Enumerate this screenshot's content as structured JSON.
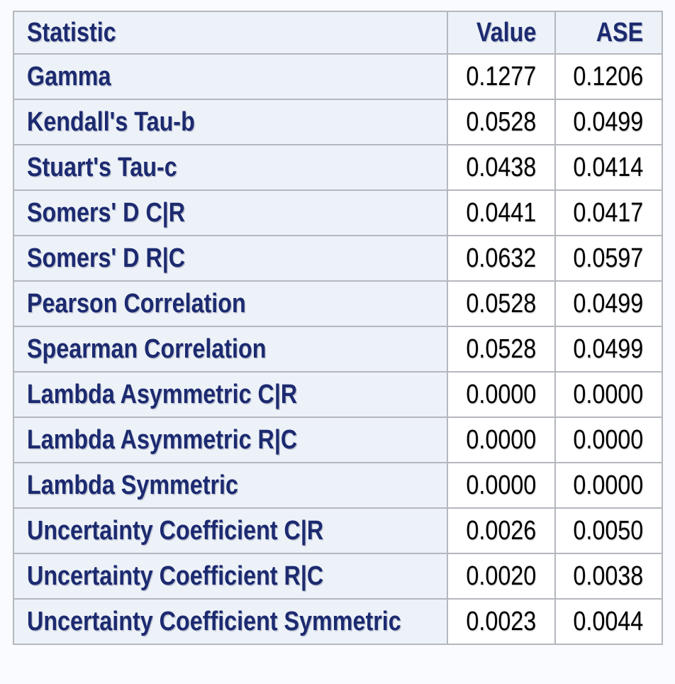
{
  "colors": {
    "page_bg": "#fafbfe",
    "header_cell_bg": "#edf2f9",
    "data_cell_bg": "#ffffff",
    "border": "#b4b7bd",
    "label_text": "#1c2a70",
    "value_text": "#000000"
  },
  "chart_data": {
    "type": "table",
    "columns": [
      "Statistic",
      "Value",
      "ASE"
    ],
    "rows": [
      {
        "statistic": "Gamma",
        "value": "0.1277",
        "ase": "0.1206"
      },
      {
        "statistic": "Kendall's Tau-b",
        "value": "0.0528",
        "ase": "0.0499"
      },
      {
        "statistic": "Stuart's Tau-c",
        "value": "0.0438",
        "ase": "0.0414"
      },
      {
        "statistic": "Somers' D C|R",
        "value": "0.0441",
        "ase": "0.0417"
      },
      {
        "statistic": "Somers' D R|C",
        "value": "0.0632",
        "ase": "0.0597"
      },
      {
        "statistic": "Pearson Correlation",
        "value": "0.0528",
        "ase": "0.0499"
      },
      {
        "statistic": "Spearman Correlation",
        "value": "0.0528",
        "ase": "0.0499"
      },
      {
        "statistic": "Lambda Asymmetric C|R",
        "value": "0.0000",
        "ase": "0.0000"
      },
      {
        "statistic": "Lambda Asymmetric R|C",
        "value": "0.0000",
        "ase": "0.0000"
      },
      {
        "statistic": "Lambda Symmetric",
        "value": "0.0000",
        "ase": "0.0000"
      },
      {
        "statistic": "Uncertainty Coefficient C|R",
        "value": "0.0026",
        "ase": "0.0050"
      },
      {
        "statistic": "Uncertainty Coefficient R|C",
        "value": "0.0020",
        "ase": "0.0038"
      },
      {
        "statistic": "Uncertainty Coefficient Symmetric",
        "value": "0.0023",
        "ase": "0.0044"
      }
    ]
  }
}
